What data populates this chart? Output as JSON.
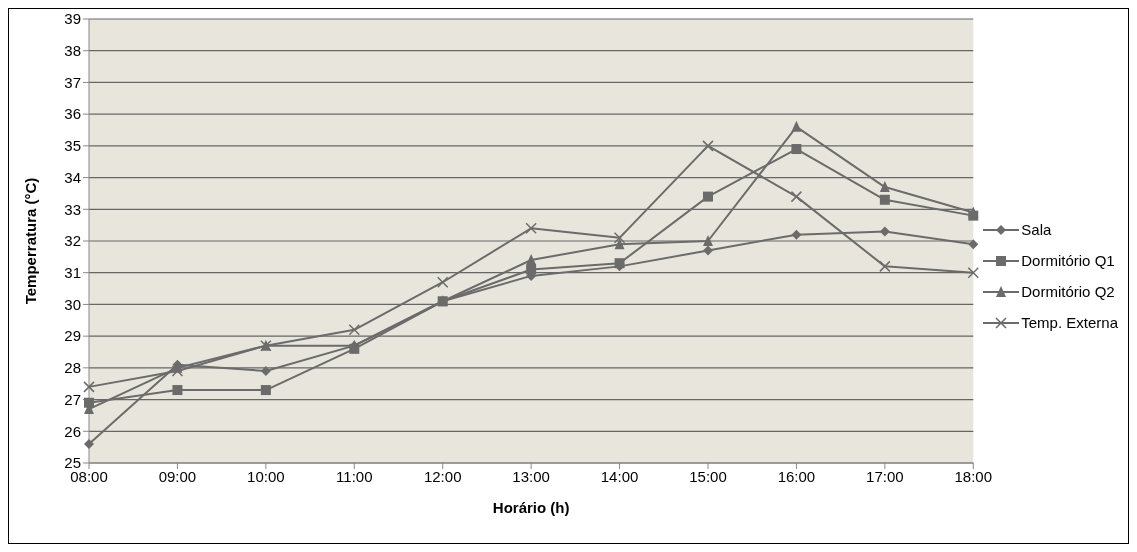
{
  "chart_data": {
    "type": "line",
    "xlabel": "Horário (h)",
    "ylabel": "Temperratura (°C)",
    "categories": [
      "08:00",
      "09:00",
      "10:00",
      "11:00",
      "12:00",
      "13:00",
      "14:00",
      "15:00",
      "16:00",
      "17:00",
      "18:00"
    ],
    "series": [
      {
        "name": "Sala",
        "color": "#6b6b6b",
        "marker": "diamond",
        "values": [
          25.6,
          28.1,
          27.9,
          28.7,
          30.1,
          30.9,
          31.2,
          31.7,
          32.2,
          32.3,
          31.9
        ]
      },
      {
        "name": "Dormitório Q1",
        "color": "#6b6b6b",
        "marker": "square",
        "values": [
          26.9,
          27.3,
          27.3,
          28.6,
          30.1,
          31.1,
          31.3,
          33.4,
          34.9,
          33.3,
          32.8
        ]
      },
      {
        "name": "Dormitório Q2",
        "color": "#6b6b6b",
        "marker": "triangle",
        "values": [
          26.7,
          28.0,
          28.7,
          28.7,
          30.1,
          31.4,
          31.9,
          32.0,
          35.6,
          33.7,
          32.9
        ]
      },
      {
        "name": "Temp. Externa",
        "color": "#6b6b6b",
        "marker": "cross",
        "values": [
          27.4,
          27.9,
          28.7,
          29.2,
          30.7,
          32.4,
          32.1,
          35.0,
          33.4,
          31.2,
          31.0
        ]
      }
    ],
    "ylim": [
      25,
      39
    ],
    "yticks": [
      25,
      26,
      27,
      28,
      29,
      30,
      31,
      32,
      33,
      34,
      35,
      36,
      37,
      38,
      39
    ],
    "grid": "y",
    "legend": "right",
    "line_style": "solid"
  }
}
